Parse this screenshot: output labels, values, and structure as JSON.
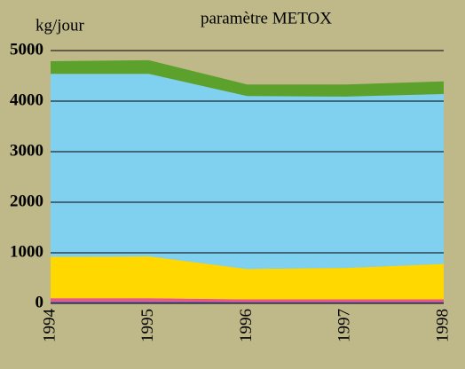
{
  "chart_data": {
    "type": "stacked_area",
    "title": "paramètre METOX",
    "y_label": "kg/jour",
    "categories": [
      "1994",
      "1995",
      "1996",
      "1997",
      "1998"
    ],
    "series": [
      {
        "color": "#7e5fb0",
        "values": [
          40,
          40,
          30,
          30,
          30
        ]
      },
      {
        "color": "#e8558a",
        "values": [
          60,
          60,
          50,
          50,
          50
        ]
      },
      {
        "color": "#ffd800",
        "values": [
          820,
          830,
          600,
          620,
          700
        ]
      },
      {
        "color": "#80d0f0",
        "values": [
          3620,
          3610,
          3420,
          3390,
          3360
        ]
      },
      {
        "color": "#5ca12c",
        "values": [
          250,
          270,
          230,
          240,
          250
        ]
      }
    ],
    "ylim": [
      0,
      5000
    ],
    "yticks": [
      0,
      1000,
      2000,
      3000,
      4000,
      5000
    ],
    "grid": true
  }
}
